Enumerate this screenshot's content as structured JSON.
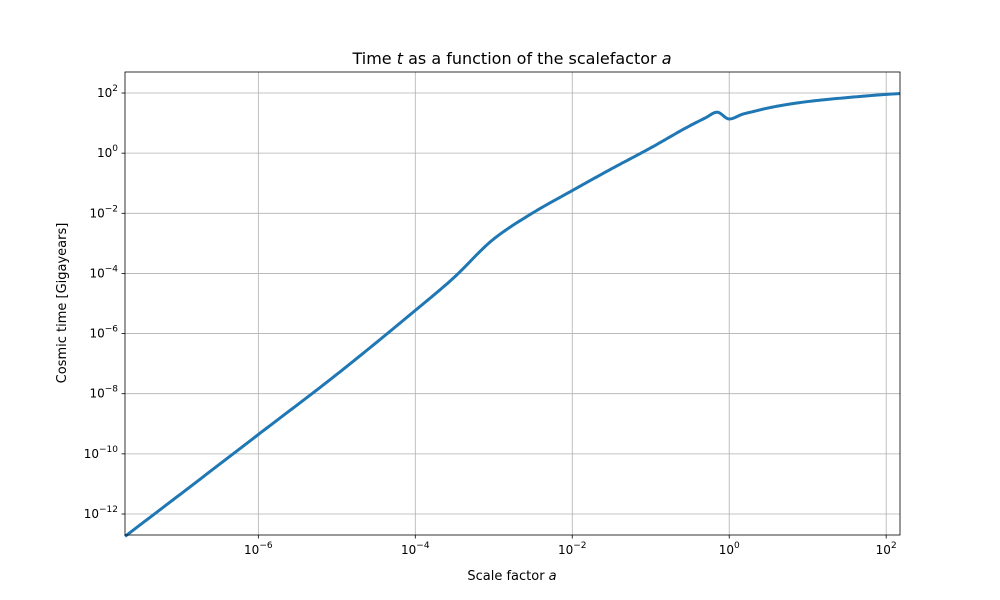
{
  "chart_data": {
    "type": "line",
    "title_pre": "Time ",
    "title_var": "t",
    "title_mid": " as a function of the scalefactor ",
    "title_var2": "a",
    "xlabel_pre": "Scale factor ",
    "xlabel_var": "a",
    "ylabel": "Cosmic time [Gigayears]",
    "xscale": "log",
    "yscale": "log",
    "xlim": [
      2e-08,
      150
    ],
    "ylim": [
      2e-13,
      500
    ],
    "grid": true,
    "x_ticks": [
      {
        "base": "10",
        "exp": "−6",
        "value": 1e-06
      },
      {
        "base": "10",
        "exp": "−4",
        "value": 0.0001
      },
      {
        "base": "10",
        "exp": "−2",
        "value": 0.01
      },
      {
        "base": "10",
        "exp": "0",
        "value": 1
      },
      {
        "base": "10",
        "exp": "2",
        "value": 100
      }
    ],
    "y_ticks": [
      {
        "base": "10",
        "exp": "2",
        "value": 100
      },
      {
        "base": "10",
        "exp": "0",
        "value": 1
      },
      {
        "base": "10",
        "exp": "−2",
        "value": 0.01
      },
      {
        "base": "10",
        "exp": "−4",
        "value": 0.0001
      },
      {
        "base": "10",
        "exp": "−6",
        "value": 1e-06
      },
      {
        "base": "10",
        "exp": "−8",
        "value": 1e-08
      },
      {
        "base": "10",
        "exp": "−10",
        "value": 1e-10
      },
      {
        "base": "10",
        "exp": "−12",
        "value": 1e-12
      }
    ],
    "series": [
      {
        "color": "#1f77b4",
        "x": [
          2e-08,
          1e-07,
          1e-06,
          1e-05,
          0.0001,
          0.0003,
          0.001,
          0.003,
          0.01,
          0.03,
          0.1,
          0.3,
          0.5,
          0.7,
          1,
          1.5,
          2,
          3,
          5,
          10,
          20,
          50,
          100,
          150
        ],
        "y": [
          1.8e-13,
          4.4e-12,
          4.4e-10,
          4.4e-08,
          5.9e-06,
          6.7e-05,
          0.0014,
          0.0096,
          0.057,
          0.28,
          1.5,
          7.6,
          15,
          23,
          13.7,
          20,
          24,
          31,
          40,
          52,
          63,
          78,
          90,
          96
        ]
      }
    ]
  }
}
